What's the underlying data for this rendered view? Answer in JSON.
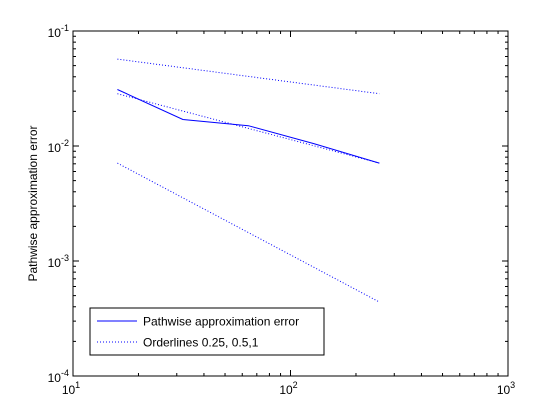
{
  "chart_data": {
    "type": "line",
    "xscale": "log",
    "yscale": "log",
    "xlim": [
      10,
      1000
    ],
    "ylim": [
      0.0001,
      0.1
    ],
    "xlabel": "",
    "ylabel": "Pathwise approximation error",
    "title": "",
    "grid": false,
    "legend_position": "bottom-left",
    "x_ticks": [
      {
        "value": 10,
        "base": "10",
        "exp": "1"
      },
      {
        "value": 100,
        "base": "10",
        "exp": "2"
      },
      {
        "value": 1000,
        "base": "10",
        "exp": "3"
      }
    ],
    "y_ticks": [
      {
        "value": 0.0001,
        "base": "10",
        "exp": "-4"
      },
      {
        "value": 0.001,
        "base": "10",
        "exp": "-3"
      },
      {
        "value": 0.01,
        "base": "10",
        "exp": "-2"
      },
      {
        "value": 0.1,
        "base": "10",
        "exp": "-1"
      }
    ],
    "series": [
      {
        "name": "Pathwise approximation error",
        "style": "solid",
        "color": "#0000ff",
        "x": [
          16,
          32,
          64,
          128,
          256
        ],
        "y": [
          0.031,
          0.017,
          0.015,
          0.0105,
          0.0071
        ]
      },
      {
        "name": "Orderlines 0.25, 0.5,1",
        "style": "dotted",
        "color": "#0000ff",
        "x": [
          16,
          256
        ],
        "y": [
          0.057,
          0.0285
        ]
      },
      {
        "style": "dotted",
        "color": "#0000ff",
        "x": [
          16,
          256
        ],
        "y": [
          0.0285,
          0.0071
        ]
      },
      {
        "style": "dotted",
        "color": "#0000ff",
        "x": [
          16,
          256
        ],
        "y": [
          0.0071,
          0.00044
        ]
      }
    ],
    "legend": [
      {
        "label": "Pathwise approximation error",
        "style": "solid",
        "color": "#0000ff"
      },
      {
        "label": "Orderlines 0.25, 0.5,1",
        "style": "dotted",
        "color": "#0000ff"
      }
    ]
  }
}
